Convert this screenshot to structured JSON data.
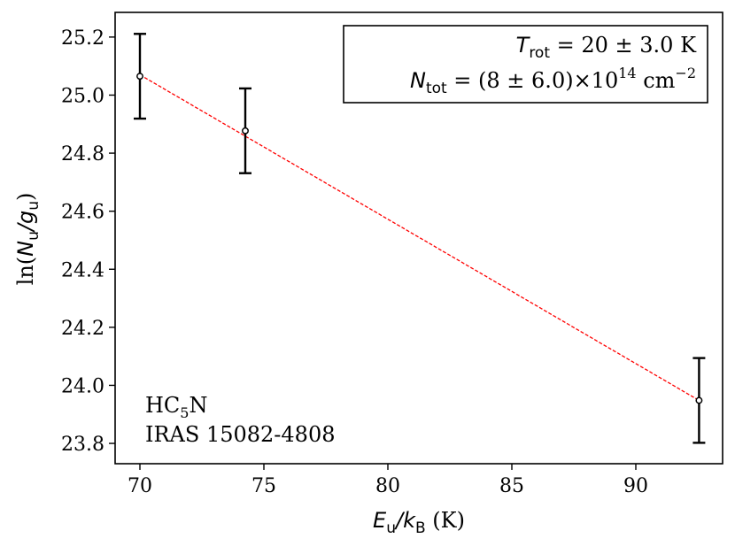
{
  "chart_data": {
    "type": "scatter",
    "x": [
      70.0,
      74.25,
      92.55
    ],
    "y": [
      25.065,
      24.877,
      23.948
    ],
    "yerr": [
      0.146,
      0.146,
      0.146
    ],
    "fit_line": {
      "x": [
        70.0,
        92.55
      ],
      "y": [
        25.07,
        23.948
      ],
      "color": "#ff0000",
      "style": "dashed"
    },
    "xlim": [
      69.0,
      93.5
    ],
    "ylim": [
      23.73,
      25.285
    ],
    "xticks": [
      70,
      75,
      80,
      85,
      90
    ],
    "yticks": [
      23.8,
      24.0,
      24.2,
      24.4,
      24.6,
      24.8,
      25.0,
      25.2
    ],
    "xtick_labels": [
      "70",
      "75",
      "80",
      "85",
      "90"
    ],
    "ytick_labels": [
      "23.8",
      "24.0",
      "24.2",
      "24.4",
      "24.6",
      "24.8",
      "25.0",
      "25.2"
    ],
    "xlabel": {
      "main": "E",
      "sub": "u",
      "sep": "/",
      "main2": "k",
      "sub2": "B",
      "unit": " (K)"
    },
    "ylabel": {
      "prefix": "ln(",
      "main": "N",
      "sub": "u",
      "sep": "/",
      "main2": "g",
      "sub2": "u",
      "suffix": ")"
    },
    "legend": {
      "placement": "top-right",
      "line1": {
        "sym": "T",
        "sub": "rot",
        "text": " = 20 ± 3.0 K"
      },
      "line2": {
        "sym": "N",
        "sub": "tot",
        "text": " = (8 ± 6.0)×10",
        "sup": "14",
        "text2": " cm",
        "sup2": "−2"
      }
    },
    "annotation": {
      "molecule": "HC",
      "molecule_sub": "5",
      "molecule_end": "N",
      "source": "IRAS 15082-4808",
      "placement": "bottom-left"
    },
    "grid": false,
    "colors": {
      "points": "#000000",
      "fit": "#ff0000",
      "marker_face": "#ffffff"
    }
  }
}
